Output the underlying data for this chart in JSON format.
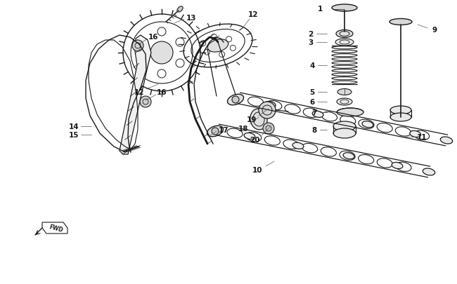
{
  "bg_color": "#ffffff",
  "line_color": "#1a1a1a",
  "fig_width": 6.5,
  "fig_height": 4.06,
  "dpi": 100
}
